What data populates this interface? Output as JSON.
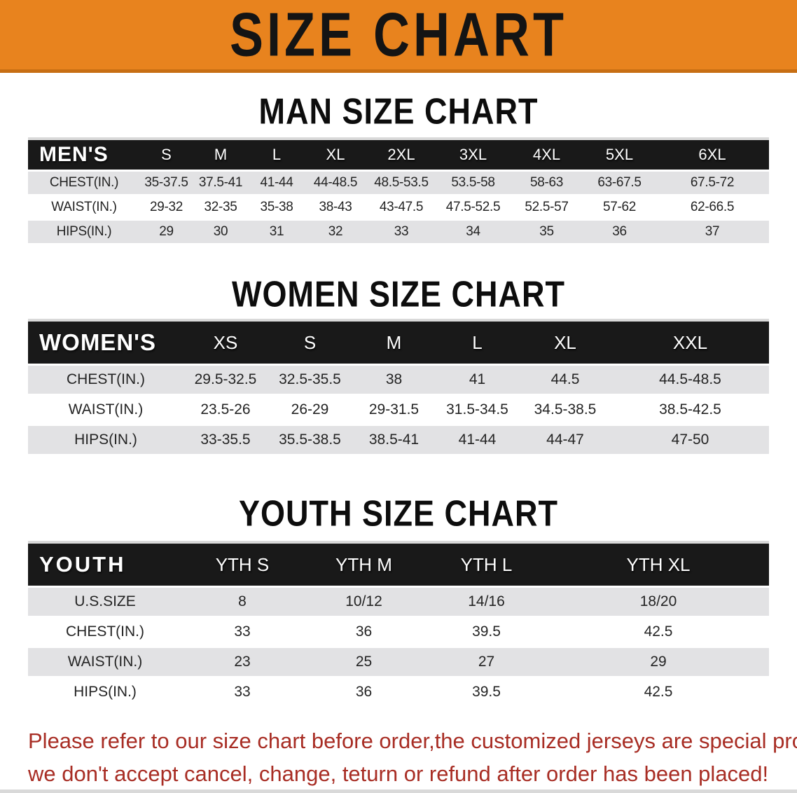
{
  "banner": {
    "title": "SIZE CHART"
  },
  "colors": {
    "banner_bg": "#E8831E",
    "banner_edge": "#C76E13",
    "table_header_bg": "#191919",
    "row_alt_gray": "#E2E2E4",
    "disclaimer_red": "#A82D24"
  },
  "sections": [
    {
      "title": "MAN SIZE CHART",
      "header_label": "MEN'S",
      "columns": [
        "S",
        "M",
        "L",
        "XL",
        "2XL",
        "3XL",
        "4XL",
        "5XL",
        "6XL"
      ],
      "rows": [
        {
          "label": "CHEST(IN.)",
          "values": [
            "35-37.5",
            "37.5-41",
            "41-44",
            "44-48.5",
            "48.5-53.5",
            "53.5-58",
            "58-63",
            "63-67.5",
            "67.5-72"
          ]
        },
        {
          "label": "WAIST(IN.)",
          "values": [
            "29-32",
            "32-35",
            "35-38",
            "38-43",
            "43-47.5",
            "47.5-52.5",
            "52.5-57",
            "57-62",
            "62-66.5"
          ]
        },
        {
          "label": "HIPS(IN.)",
          "values": [
            "29",
            "30",
            "31",
            "32",
            "33",
            "34",
            "35",
            "36",
            "37"
          ]
        }
      ]
    },
    {
      "title": "WOMEN SIZE CHART",
      "header_label": "WOMEN'S",
      "columns": [
        "XS",
        "S",
        "M",
        "L",
        "XL",
        "XXL"
      ],
      "rows": [
        {
          "label": "CHEST(IN.)",
          "values": [
            "29.5-32.5",
            "32.5-35.5",
            "38",
            "41",
            "44.5",
            "44.5-48.5"
          ]
        },
        {
          "label": "WAIST(IN.)",
          "values": [
            "23.5-26",
            "26-29",
            "29-31.5",
            "31.5-34.5",
            "34.5-38.5",
            "38.5-42.5"
          ]
        },
        {
          "label": "HIPS(IN.)",
          "values": [
            "33-35.5",
            "35.5-38.5",
            "38.5-41",
            "41-44",
            "44-47",
            "47-50"
          ]
        }
      ]
    },
    {
      "title": "YOUTH SIZE CHART",
      "header_label": "YOUTH",
      "columns": [
        "YTH S",
        "YTH M",
        "YTH L",
        "YTH XL"
      ],
      "rows": [
        {
          "label": "U.S.SIZE",
          "values": [
            "8",
            "10/12",
            "14/16",
            "18/20"
          ]
        },
        {
          "label": "CHEST(IN.)",
          "values": [
            "33",
            "36",
            "39.5",
            "42.5"
          ]
        },
        {
          "label": "WAIST(IN.)",
          "values": [
            "23",
            "25",
            "27",
            "29"
          ]
        },
        {
          "label": "HIPS(IN.)",
          "values": [
            "33",
            "36",
            "39.5",
            "42.5"
          ]
        }
      ]
    }
  ],
  "disclaimer": {
    "line1": "Please refer to our size chart before order,the customized jerseys are special products,",
    "line2": "we don't accept cancel, change, teturn or refund after order has been placed!"
  }
}
